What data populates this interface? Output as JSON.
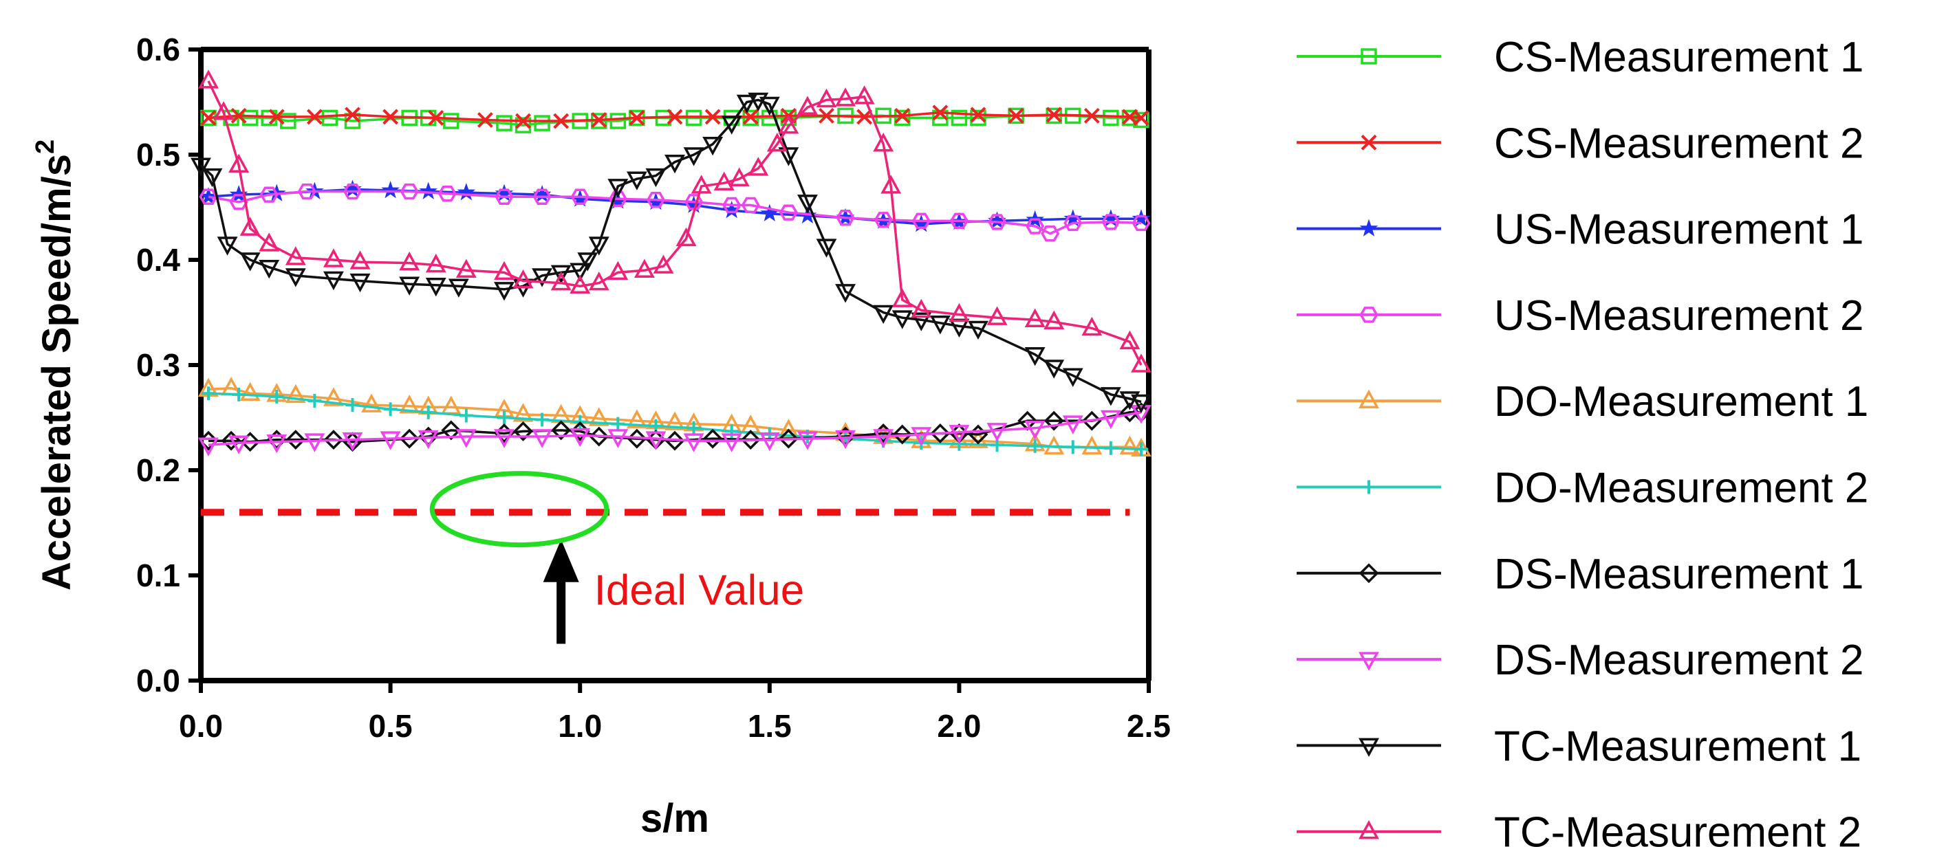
{
  "chart_data": {
    "type": "line",
    "xlabel": "s/m",
    "ylabel_main": "Accelerated Speed/m/s",
    "ylabel_sup": "2",
    "xlim": [
      0,
      2.5
    ],
    "ylim": [
      0,
      0.6
    ],
    "xticks": [
      0.0,
      0.5,
      1.0,
      1.5,
      2.0,
      2.5
    ],
    "xtick_labels": [
      "0.0",
      "0.5",
      "1.0",
      "1.5",
      "2.0",
      "2.5"
    ],
    "yticks": [
      0.0,
      0.1,
      0.2,
      0.3,
      0.4,
      0.5,
      0.6
    ],
    "ytick_labels": [
      "0.0",
      "0.1",
      "0.2",
      "0.3",
      "0.4",
      "0.5",
      "0.6"
    ],
    "legend_position": "right",
    "series": [
      {
        "name": "CS-Measurement 1",
        "color": "#22dd22",
        "marker": "square",
        "x": [
          0.02,
          0.08,
          0.13,
          0.18,
          0.23,
          0.34,
          0.4,
          0.55,
          0.6,
          0.66,
          0.8,
          0.85,
          0.9,
          1.0,
          1.05,
          1.1,
          1.15,
          1.22,
          1.3,
          1.4,
          1.45,
          1.5,
          1.55,
          1.7,
          1.8,
          1.85,
          1.95,
          2.0,
          2.05,
          2.15,
          2.25,
          2.3,
          2.4,
          2.45,
          2.48
        ],
        "y": [
          0.535,
          0.535,
          0.535,
          0.535,
          0.532,
          0.535,
          0.532,
          0.535,
          0.535,
          0.532,
          0.53,
          0.528,
          0.53,
          0.532,
          0.532,
          0.532,
          0.535,
          0.535,
          0.535,
          0.535,
          0.535,
          0.535,
          0.535,
          0.537,
          0.537,
          0.535,
          0.535,
          0.535,
          0.535,
          0.537,
          0.537,
          0.537,
          0.535,
          0.535,
          0.533
        ]
      },
      {
        "name": "CS-Measurement 2",
        "color": "#ee2222",
        "marker": "x",
        "x": [
          0.02,
          0.1,
          0.2,
          0.3,
          0.4,
          0.5,
          0.62,
          0.75,
          0.85,
          0.95,
          1.05,
          1.15,
          1.25,
          1.35,
          1.45,
          1.55,
          1.65,
          1.75,
          1.85,
          1.95,
          2.05,
          2.15,
          2.25,
          2.35,
          2.45,
          2.48
        ],
        "y": [
          0.535,
          0.537,
          0.536,
          0.536,
          0.538,
          0.536,
          0.535,
          0.533,
          0.532,
          0.532,
          0.533,
          0.535,
          0.536,
          0.536,
          0.536,
          0.537,
          0.537,
          0.536,
          0.537,
          0.54,
          0.538,
          0.537,
          0.538,
          0.537,
          0.536,
          0.535
        ]
      },
      {
        "name": "US-Measurement 1",
        "color": "#2233ee",
        "marker": "star",
        "x": [
          0.02,
          0.1,
          0.2,
          0.3,
          0.4,
          0.5,
          0.6,
          0.7,
          0.8,
          0.9,
          1.0,
          1.1,
          1.2,
          1.3,
          1.4,
          1.5,
          1.6,
          1.7,
          1.8,
          1.9,
          2.0,
          2.1,
          2.2,
          2.3,
          2.4,
          2.48
        ],
        "y": [
          0.46,
          0.462,
          0.463,
          0.465,
          0.467,
          0.466,
          0.465,
          0.464,
          0.463,
          0.462,
          0.458,
          0.456,
          0.455,
          0.452,
          0.447,
          0.444,
          0.442,
          0.44,
          0.437,
          0.434,
          0.436,
          0.437,
          0.438,
          0.439,
          0.439,
          0.439
        ]
      },
      {
        "name": "US-Measurement 2",
        "color": "#ee44ee",
        "marker": "hexagon",
        "x": [
          0.02,
          0.1,
          0.18,
          0.28,
          0.4,
          0.55,
          0.65,
          0.8,
          0.9,
          1.0,
          1.1,
          1.2,
          1.3,
          1.4,
          1.45,
          1.55,
          1.7,
          1.8,
          1.9,
          2.0,
          2.1,
          2.2,
          2.24,
          2.3,
          2.4,
          2.48
        ],
        "y": [
          0.46,
          0.455,
          0.462,
          0.465,
          0.465,
          0.465,
          0.463,
          0.46,
          0.46,
          0.46,
          0.458,
          0.457,
          0.455,
          0.452,
          0.452,
          0.445,
          0.44,
          0.438,
          0.437,
          0.437,
          0.436,
          0.432,
          0.425,
          0.435,
          0.436,
          0.435
        ]
      },
      {
        "name": "DO-Measurement 1",
        "color": "#f4a040",
        "marker": "triangle-up",
        "x": [
          0.02,
          0.08,
          0.13,
          0.2,
          0.25,
          0.35,
          0.45,
          0.55,
          0.6,
          0.66,
          0.8,
          0.85,
          0.95,
          1.0,
          1.05,
          1.15,
          1.2,
          1.25,
          1.3,
          1.4,
          1.45,
          1.55,
          1.7,
          1.8,
          1.9,
          2.0,
          2.05,
          2.2,
          2.25,
          2.35,
          2.45,
          2.48
        ],
        "y": [
          0.277,
          0.278,
          0.273,
          0.272,
          0.271,
          0.268,
          0.262,
          0.261,
          0.26,
          0.26,
          0.257,
          0.253,
          0.252,
          0.251,
          0.249,
          0.247,
          0.246,
          0.245,
          0.244,
          0.243,
          0.242,
          0.238,
          0.235,
          0.232,
          0.228,
          0.228,
          0.228,
          0.225,
          0.222,
          0.222,
          0.222,
          0.22
        ]
      },
      {
        "name": "DO-Measurement 2",
        "color": "#22ccbb",
        "marker": "plus",
        "x": [
          0.02,
          0.1,
          0.2,
          0.3,
          0.4,
          0.5,
          0.6,
          0.7,
          0.8,
          0.9,
          1.0,
          1.1,
          1.2,
          1.3,
          1.4,
          1.5,
          1.6,
          1.7,
          1.8,
          1.9,
          2.0,
          2.1,
          2.2,
          2.3,
          2.4,
          2.48
        ],
        "y": [
          0.273,
          0.272,
          0.27,
          0.266,
          0.262,
          0.258,
          0.255,
          0.252,
          0.25,
          0.248,
          0.246,
          0.244,
          0.242,
          0.24,
          0.237,
          0.234,
          0.232,
          0.23,
          0.228,
          0.226,
          0.225,
          0.224,
          0.223,
          0.222,
          0.221,
          0.22
        ]
      },
      {
        "name": "DS-Measurement 1",
        "color": "#111111",
        "marker": "diamond",
        "x": [
          0.02,
          0.08,
          0.13,
          0.2,
          0.25,
          0.35,
          0.4,
          0.55,
          0.6,
          0.66,
          0.8,
          0.85,
          0.95,
          1.0,
          1.05,
          1.15,
          1.2,
          1.25,
          1.35,
          1.45,
          1.55,
          1.7,
          1.8,
          1.85,
          1.95,
          2.0,
          2.05,
          2.18,
          2.25,
          2.35,
          2.45,
          2.48
        ],
        "y": [
          0.228,
          0.228,
          0.227,
          0.229,
          0.229,
          0.229,
          0.227,
          0.23,
          0.232,
          0.238,
          0.235,
          0.237,
          0.238,
          0.237,
          0.232,
          0.23,
          0.229,
          0.228,
          0.23,
          0.229,
          0.23,
          0.232,
          0.235,
          0.234,
          0.235,
          0.235,
          0.234,
          0.247,
          0.247,
          0.247,
          0.255,
          0.255
        ]
      },
      {
        "name": "DS-Measurement 2",
        "color": "#ee44ee",
        "marker": "triangle-down",
        "x": [
          0.02,
          0.1,
          0.2,
          0.3,
          0.4,
          0.5,
          0.6,
          0.7,
          0.8,
          0.9,
          1.0,
          1.1,
          1.2,
          1.3,
          1.4,
          1.5,
          1.6,
          1.7,
          1.8,
          1.9,
          2.0,
          2.1,
          2.2,
          2.3,
          2.4,
          2.48
        ],
        "y": [
          0.224,
          0.226,
          0.227,
          0.228,
          0.229,
          0.23,
          0.231,
          0.232,
          0.232,
          0.232,
          0.233,
          0.232,
          0.23,
          0.228,
          0.228,
          0.229,
          0.23,
          0.231,
          0.232,
          0.234,
          0.236,
          0.238,
          0.24,
          0.245,
          0.25,
          0.255
        ]
      },
      {
        "name": "TC-Measurement 1",
        "color": "#111111",
        "marker": "triangle-down",
        "x": [
          0.0,
          0.03,
          0.07,
          0.13,
          0.18,
          0.25,
          0.35,
          0.42,
          0.55,
          0.62,
          0.68,
          0.8,
          0.85,
          0.9,
          0.95,
          1.0,
          1.02,
          1.05,
          1.1,
          1.15,
          1.2,
          1.25,
          1.3,
          1.35,
          1.4,
          1.44,
          1.47,
          1.5,
          1.55,
          1.6,
          1.65,
          1.7,
          1.8,
          1.85,
          1.9,
          1.95,
          2.0,
          2.05,
          2.2,
          2.25,
          2.3,
          2.4,
          2.45,
          2.48
        ],
        "y": [
          0.49,
          0.48,
          0.415,
          0.4,
          0.393,
          0.385,
          0.382,
          0.38,
          0.377,
          0.376,
          0.375,
          0.372,
          0.375,
          0.385,
          0.388,
          0.39,
          0.4,
          0.415,
          0.47,
          0.477,
          0.48,
          0.493,
          0.5,
          0.51,
          0.53,
          0.55,
          0.552,
          0.548,
          0.5,
          0.455,
          0.413,
          0.37,
          0.35,
          0.345,
          0.343,
          0.34,
          0.337,
          0.335,
          0.31,
          0.298,
          0.29,
          0.272,
          0.268,
          0.265
        ]
      },
      {
        "name": "TC-Measurement 2",
        "color": "#ee2277",
        "marker": "triangle-up",
        "x": [
          0.02,
          0.06,
          0.1,
          0.13,
          0.18,
          0.25,
          0.35,
          0.42,
          0.55,
          0.62,
          0.7,
          0.8,
          0.85,
          0.95,
          1.0,
          1.05,
          1.1,
          1.17,
          1.22,
          1.28,
          1.32,
          1.38,
          1.42,
          1.47,
          1.52,
          1.55,
          1.6,
          1.65,
          1.7,
          1.75,
          1.8,
          1.82,
          1.85,
          1.9,
          2.0,
          2.1,
          2.2,
          2.25,
          2.35,
          2.45,
          2.48
        ],
        "y": [
          0.57,
          0.54,
          0.49,
          0.43,
          0.415,
          0.402,
          0.4,
          0.398,
          0.397,
          0.395,
          0.39,
          0.388,
          0.38,
          0.378,
          0.375,
          0.378,
          0.388,
          0.39,
          0.394,
          0.42,
          0.47,
          0.473,
          0.477,
          0.487,
          0.51,
          0.527,
          0.545,
          0.552,
          0.553,
          0.555,
          0.51,
          0.47,
          0.362,
          0.352,
          0.348,
          0.345,
          0.343,
          0.341,
          0.335,
          0.322,
          0.3
        ]
      }
    ],
    "reference_line": {
      "y": 0.16,
      "x_start": 0.0,
      "x_end": 2.45,
      "color": "#ee1111",
      "style": "dashed"
    },
    "annotations": [
      {
        "text": "Ideal Value",
        "color": "#ee1111",
        "arrow_x": 0.95,
        "arrow_from_y": 0.035,
        "arrow_to_y": 0.125
      },
      {
        "shape": "ellipse",
        "color": "#22dd22",
        "cx": 0.84,
        "cy": 0.163,
        "rx": 0.23,
        "ry": 0.034
      }
    ]
  }
}
